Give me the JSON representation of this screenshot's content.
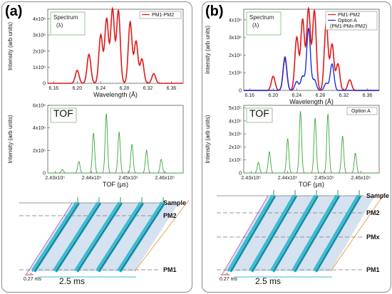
{
  "panels": [
    {
      "label": "(a)",
      "spectrum": {
        "box_title": "Spectrum",
        "box_symbol": "(λ)",
        "legend": [
          "PM1-PM2"
        ],
        "xlabel": "Wavelength (Å)",
        "ylabel": "Intensity (arb units)",
        "xticks": [
          "6.16",
          "6.20",
          "6.24",
          "6.28",
          "6.32",
          "6.36"
        ],
        "yticks": [
          "0",
          "1x10⁶",
          "2x10⁶",
          "3x10⁶",
          "4x10⁶"
        ]
      },
      "tof": {
        "box_title": "TOF",
        "legend": [],
        "xlabel": "TOF (μs)",
        "ylabel": "Intensity (arb units)",
        "xticks": [
          "2.43x10⁵",
          "2.44x10⁵",
          "2.45x10⁵",
          "2.46x10⁵"
        ],
        "yticks": [
          "0",
          "2x10⁶",
          "4x10⁶",
          "6x10⁶"
        ]
      },
      "diagram": {
        "layers": [
          "Sample",
          "PM2",
          "PM1"
        ],
        "small_scale": "0.27 ms",
        "big_scale": "2.5 ms"
      }
    },
    {
      "label": "(b)",
      "spectrum": {
        "box_title": "Spectrum",
        "box_symbol": "(λ)",
        "legend": [
          "PM1-PM2",
          "Option A",
          "(PM1-PMx-PM2)"
        ],
        "xlabel": "Wavelength (Å)",
        "ylabel": "Intensity (arb units)",
        "xticks": [
          "6.16",
          "6.20",
          "6.24",
          "6.28",
          "6.32",
          "6.36"
        ],
        "yticks": [
          "0",
          "1x10⁶",
          "2x10⁶",
          "3x10⁶",
          "4x10⁶"
        ]
      },
      "tof": {
        "box_title": "TOF",
        "legend": [
          "Option A"
        ],
        "xlabel": "TOF (μs)",
        "ylabel": "Intensity (arb units)",
        "xticks": [
          "2.43x10⁵",
          "2.44x10⁵",
          "2.45x10⁵",
          "2.46x10⁵"
        ],
        "yticks": [
          "0",
          "1x10⁵",
          "2x10⁵",
          "3x10⁵",
          "4x10⁵",
          "5x10⁵"
        ]
      },
      "diagram": {
        "layers": [
          "Sample",
          "PM2",
          "PMx",
          "PM1"
        ],
        "small_scale": "0.27 ms",
        "big_scale": "2.5 ms"
      }
    }
  ],
  "colors": {
    "pm1_pm2": "#e01818",
    "option_a": "#1a2ee0",
    "tof": "#3aa63a",
    "guide": "#3cbcd2"
  },
  "chart_data": [
    {
      "type": "line",
      "xlabel": "Wavelength (Å)",
      "ylabel": "Intensity (arb units)",
      "xlim": [
        6.15,
        6.38
      ],
      "ylim": [
        0,
        4600000.0
      ],
      "series": [
        {
          "name": "PM1-PM2",
          "peak_x": [
            6.2,
            6.22,
            6.24,
            6.25,
            6.26,
            6.27,
            6.29,
            6.3,
            6.31,
            6.33
          ],
          "peak_y": [
            800000.0,
            1800000.0,
            3000000.0,
            4000000.0,
            4600000.0,
            4500000.0,
            3800000.0,
            2600000.0,
            1500000.0,
            600000.0
          ]
        }
      ]
    },
    {
      "type": "line",
      "xlabel": "TOF (μs)",
      "ylabel": "Intensity (arb units)",
      "xlim": [
        242800,
        246500
      ],
      "ylim": [
        0,
        6000000.0
      ],
      "series": [
        {
          "name": "",
          "peak_x": [
            243200,
            243650,
            244050,
            244400,
            244750,
            245100,
            245500,
            245900
          ],
          "peak_y": [
            300000.0,
            1000000.0,
            3500000.0,
            5200000.0,
            3600000.0,
            2500000.0,
            2000000.0,
            1200000.0
          ]
        }
      ]
    },
    {
      "type": "line",
      "xlabel": "Wavelength (Å)",
      "ylabel": "Intensity (arb units)",
      "xlim": [
        6.15,
        6.38
      ],
      "ylim": [
        0,
        4600000.0
      ],
      "series": [
        {
          "name": "PM1-PM2",
          "peak_x": [
            6.2,
            6.22,
            6.24,
            6.25,
            6.26,
            6.27,
            6.29,
            6.3,
            6.31,
            6.33
          ],
          "peak_y": [
            800000.0,
            1800000.0,
            3000000.0,
            4000000.0,
            4600000.0,
            4500000.0,
            3800000.0,
            2600000.0,
            1500000.0,
            600000.0
          ]
        },
        {
          "name": "Option A",
          "peak_x": [
            6.22,
            6.24,
            6.25,
            6.26,
            6.27,
            6.29,
            6.3
          ],
          "peak_y": [
            1900000.0,
            500000.0,
            800000.0,
            3500000.0,
            600000.0,
            400000.0,
            1500000.0
          ]
        }
      ]
    },
    {
      "type": "line",
      "xlabel": "TOF (μs)",
      "ylabel": "Intensity (arb units)",
      "xlim": [
        242800,
        246500
      ],
      "ylim": [
        0,
        520000.0
      ],
      "series": [
        {
          "name": "Option A",
          "peak_x": [
            243200,
            243500,
            244000,
            244350,
            244750,
            245100,
            245500,
            245850
          ],
          "peak_y": [
            80000.0,
            160000.0,
            260000.0,
            470000.0,
            420000.0,
            450000.0,
            280000.0,
            150000.0
          ]
        }
      ]
    }
  ]
}
